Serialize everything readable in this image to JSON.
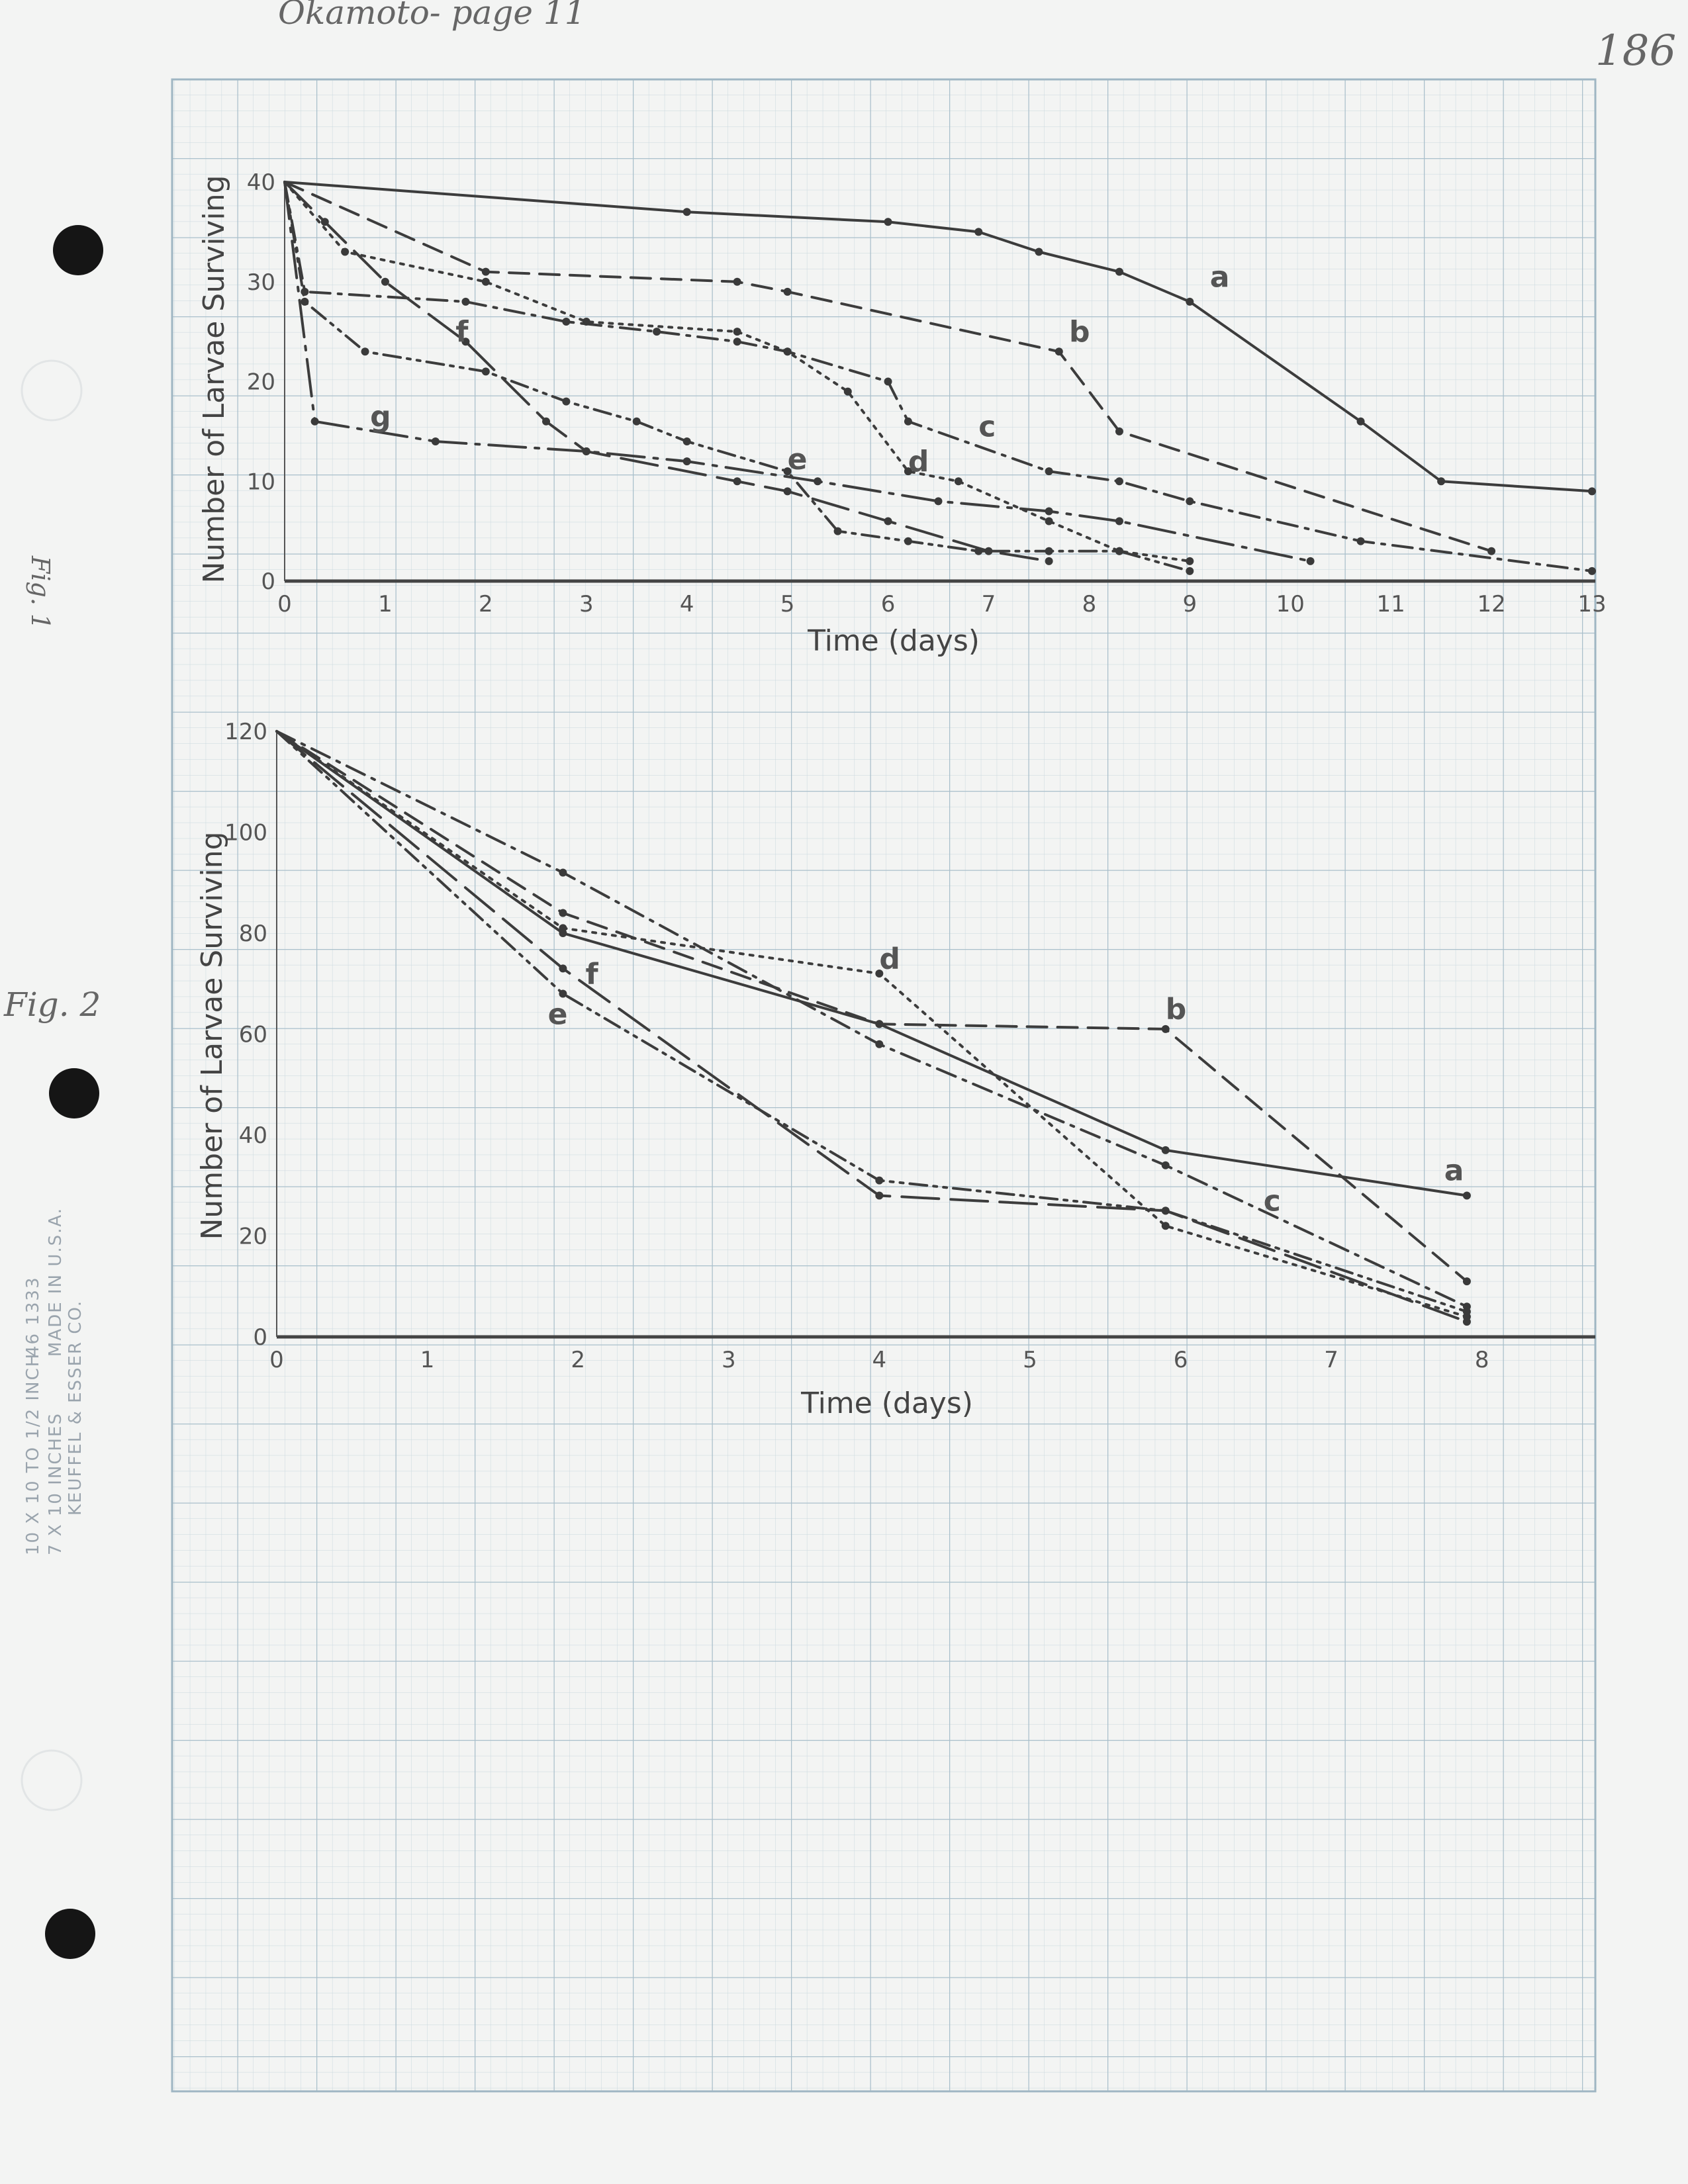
{
  "annotations": {
    "top_note": "Okamoto- page 11",
    "page_number": "186",
    "fig1_note": "Fig. 1",
    "fig2_note": "Fig. 2"
  },
  "paper": {
    "grid_color": "#b9cbd5",
    "print_text": [
      "10 X 10 TO 1/2 INCH",
      "46 1333",
      "7 X 10 INCHES",
      "MADE IN U.S.A.",
      "KEUFFEL & ESSER CO."
    ]
  },
  "chart_data": [
    {
      "type": "line",
      "xlabel": "Time (days)",
      "ylabel": "Number of Larvae Surviving",
      "xlim": [
        0,
        13
      ],
      "ylim": [
        0,
        40
      ],
      "xticks": [
        0,
        1,
        2,
        3,
        4,
        5,
        6,
        7,
        8,
        9,
        10,
        11,
        12,
        13
      ],
      "yticks": [
        0,
        10,
        20,
        30,
        40
      ],
      "series": [
        {
          "name": "a",
          "style": "solid",
          "label_pos": [
            9.2,
            29.5
          ],
          "x": [
            0,
            4,
            6,
            6.9,
            7.5,
            8.3,
            9,
            10.7,
            11.5,
            13
          ],
          "y": [
            40,
            37,
            36,
            35,
            33,
            31,
            28,
            16,
            10,
            9
          ]
        },
        {
          "name": "b",
          "style": "dashed",
          "label_pos": [
            7.8,
            24
          ],
          "x": [
            0,
            2,
            4.5,
            5,
            7.7,
            8.3,
            12
          ],
          "y": [
            40,
            31,
            30,
            29,
            23,
            15,
            3
          ]
        },
        {
          "name": "c",
          "style": "dashdot",
          "label_pos": [
            6.9,
            14.5
          ],
          "x": [
            0,
            0.2,
            1.8,
            2.8,
            3.7,
            4.5,
            5,
            6,
            6.2,
            7.6,
            8.3,
            9,
            10.7,
            13
          ],
          "y": [
            40,
            29,
            28,
            26,
            25,
            24,
            23,
            20,
            16,
            11,
            10,
            8,
            4,
            1
          ]
        },
        {
          "name": "d",
          "style": "dotted",
          "label_pos": [
            6.2,
            11
          ],
          "x": [
            0,
            0.6,
            2,
            3,
            4.5,
            5,
            5.6,
            6.2,
            6.7,
            7.6,
            8.3,
            9
          ],
          "y": [
            40,
            33,
            30,
            26,
            25,
            23,
            19,
            11,
            10,
            6,
            3,
            2
          ]
        },
        {
          "name": "e",
          "style": "dashdotdot",
          "label_pos": [
            5.0,
            11.2
          ],
          "x": [
            0,
            0.2,
            0.8,
            2,
            2.8,
            3.5,
            4,
            5,
            5.5,
            6.2,
            6.9,
            7.6,
            8.3,
            9
          ],
          "y": [
            40,
            28,
            23,
            21,
            18,
            16,
            14,
            11,
            5,
            4,
            3,
            3,
            3,
            1
          ]
        },
        {
          "name": "f",
          "style": "longdash",
          "label_pos": [
            1.7,
            24
          ],
          "x": [
            0,
            0.4,
            1,
            1.8,
            2.6,
            3,
            4.5,
            5,
            6,
            7,
            7.6
          ],
          "y": [
            40,
            36,
            30,
            24,
            16,
            13,
            10,
            9,
            6,
            3,
            2
          ]
        },
        {
          "name": "g",
          "style": "longdashdot",
          "label_pos": [
            0.85,
            15.5
          ],
          "x": [
            0,
            0.3,
            1.5,
            3,
            4,
            5.3,
            6.5,
            7.6,
            8.3,
            10.2
          ],
          "y": [
            40,
            16,
            14,
            13,
            12,
            10,
            8,
            7,
            6,
            2
          ]
        }
      ]
    },
    {
      "type": "line",
      "xlabel": "Time (days)",
      "ylabel": "Number of Larvae Surviving",
      "xlim": [
        0,
        8.7
      ],
      "ylim": [
        0,
        120
      ],
      "xticks": [
        0,
        1,
        2,
        3,
        4,
        5,
        6,
        7,
        8
      ],
      "yticks": [
        0,
        20,
        40,
        60,
        80,
        100,
        120
      ],
      "series": [
        {
          "name": "a",
          "style": "solid",
          "label_pos": [
            7.75,
            31
          ],
          "x": [
            0,
            1.9,
            4,
            5.9,
            7.9
          ],
          "y": [
            120,
            80,
            62,
            37,
            28
          ]
        },
        {
          "name": "b",
          "style": "dashed",
          "label_pos": [
            5.9,
            63
          ],
          "x": [
            0,
            1.9,
            4,
            5.9,
            7.9
          ],
          "y": [
            120,
            84,
            62,
            61,
            11
          ]
        },
        {
          "name": "c",
          "style": "dashdot",
          "label_pos": [
            6.55,
            25
          ],
          "x": [
            0,
            1.9,
            4,
            5.9,
            7.9
          ],
          "y": [
            120,
            92,
            58,
            34,
            6
          ]
        },
        {
          "name": "d",
          "style": "dotted",
          "label_pos": [
            4.0,
            73
          ],
          "x": [
            0,
            1.9,
            4,
            5.9,
            7.9
          ],
          "y": [
            120,
            81,
            72,
            22,
            4
          ]
        },
        {
          "name": "e",
          "style": "dashdotdot",
          "label_pos": [
            1.8,
            62
          ],
          "x": [
            0,
            1.9,
            4,
            5.9,
            7.9
          ],
          "y": [
            120,
            68,
            31,
            25,
            5
          ]
        },
        {
          "name": "f",
          "style": "longdash",
          "label_pos": [
            2.05,
            70
          ],
          "x": [
            0,
            1.9,
            4,
            5.9,
            7.9
          ],
          "y": [
            120,
            73,
            28,
            25,
            3
          ]
        }
      ]
    }
  ]
}
